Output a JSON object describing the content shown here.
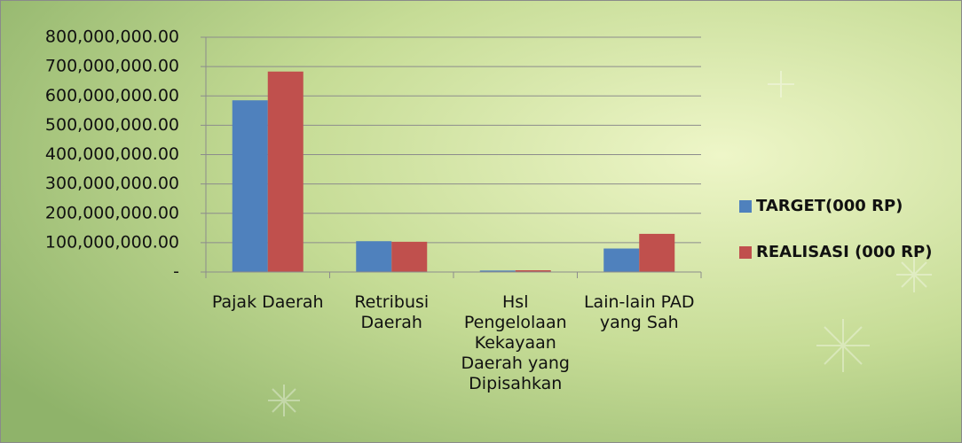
{
  "chart_data": {
    "type": "bar",
    "categories": [
      "Pajak Daerah",
      "Retribusi Daerah",
      "Hsl Pengelolaan Kekayaan Daerah yang Dipisahkan",
      "Lain-lain PAD yang Sah"
    ],
    "series": [
      {
        "name": "TARGET(000 RP)",
        "color": "#4f81bd",
        "values": [
          585000000,
          105000000,
          5000000,
          80000000
        ]
      },
      {
        "name": "REALISASI (000 RP)",
        "color": "#c0504d",
        "values": [
          683000000,
          103000000,
          6000000,
          130000000
        ]
      }
    ],
    "ylim": [
      0,
      800000000
    ],
    "yticks": [
      {
        "value": 0,
        "label": "-"
      },
      {
        "value": 100000000,
        "label": "100,000,000.00"
      },
      {
        "value": 200000000,
        "label": "200,000,000.00"
      },
      {
        "value": 300000000,
        "label": "300,000,000.00"
      },
      {
        "value": 400000000,
        "label": "400,000,000.00"
      },
      {
        "value": 500000000,
        "label": "500,000,000.00"
      },
      {
        "value": 600000000,
        "label": "600,000,000.00"
      },
      {
        "value": 700000000,
        "label": "700,000,000.00"
      },
      {
        "value": 800000000,
        "label": "800,000,000.00"
      }
    ],
    "grid": true,
    "legend": "right"
  }
}
